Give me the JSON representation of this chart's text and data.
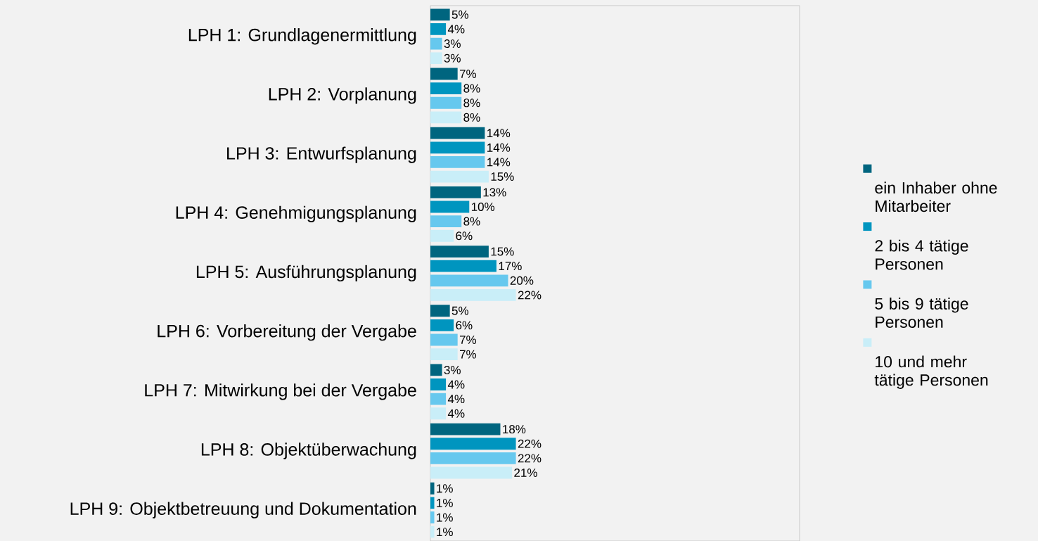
{
  "chart_data": {
    "type": "bar",
    "orientation": "horizontal",
    "legend": "right",
    "categories": [
      "LPH 1: Grundlagenermittlung",
      "LPH 2: Vorplanung",
      "LPH 3: Entwurfsplanung",
      "LPH 4: Genehmigungsplanung",
      "LPH 5: Ausführungsplanung",
      "LPH 6: Vorbereitung der Vergabe",
      "LPH 7: Mitwirkung bei der Vergabe",
      "LPH 8: Objektüberwachung",
      "LPH 9: Objektbetreuung und Dokumentation"
    ],
    "xlim": [
      0,
      95
    ],
    "series": [
      {
        "name": "ein Inhaber ohne Mitarbeiter",
        "color": "#00657f",
        "values": [
          5,
          7,
          14,
          13,
          15,
          5,
          3,
          18,
          1
        ],
        "value_labels": [
          "5%",
          "7%",
          "14%",
          "13%",
          "15%",
          "5%",
          "3%",
          "18%",
          "1%"
        ]
      },
      {
        "name": "2 bis 4 tätige Personen",
        "color": "#0095bf",
        "values": [
          4,
          8,
          14,
          10,
          17,
          6,
          4,
          22,
          1
        ],
        "value_labels": [
          "4%",
          "8%",
          "14%",
          "10%",
          "17%",
          "6%",
          "4%",
          "22%",
          "1%"
        ]
      },
      {
        "name": "5 bis 9 tätige Personen",
        "color": "#66c8ee",
        "values": [
          3,
          8,
          14,
          8,
          20,
          7,
          4,
          22,
          1
        ],
        "value_labels": [
          "3%",
          "8%",
          "14%",
          "8%",
          "20%",
          "7%",
          "4%",
          "22%",
          "1%"
        ]
      },
      {
        "name": "10 und mehr tätige Personen",
        "color": "#c9eef8",
        "values": [
          3,
          8,
          15,
          6,
          22,
          7,
          4,
          21,
          1
        ],
        "value_labels": [
          "3%",
          "8%",
          "15%",
          "6%",
          "22%",
          "7%",
          "4%",
          "21%",
          "1%"
        ]
      }
    ]
  }
}
